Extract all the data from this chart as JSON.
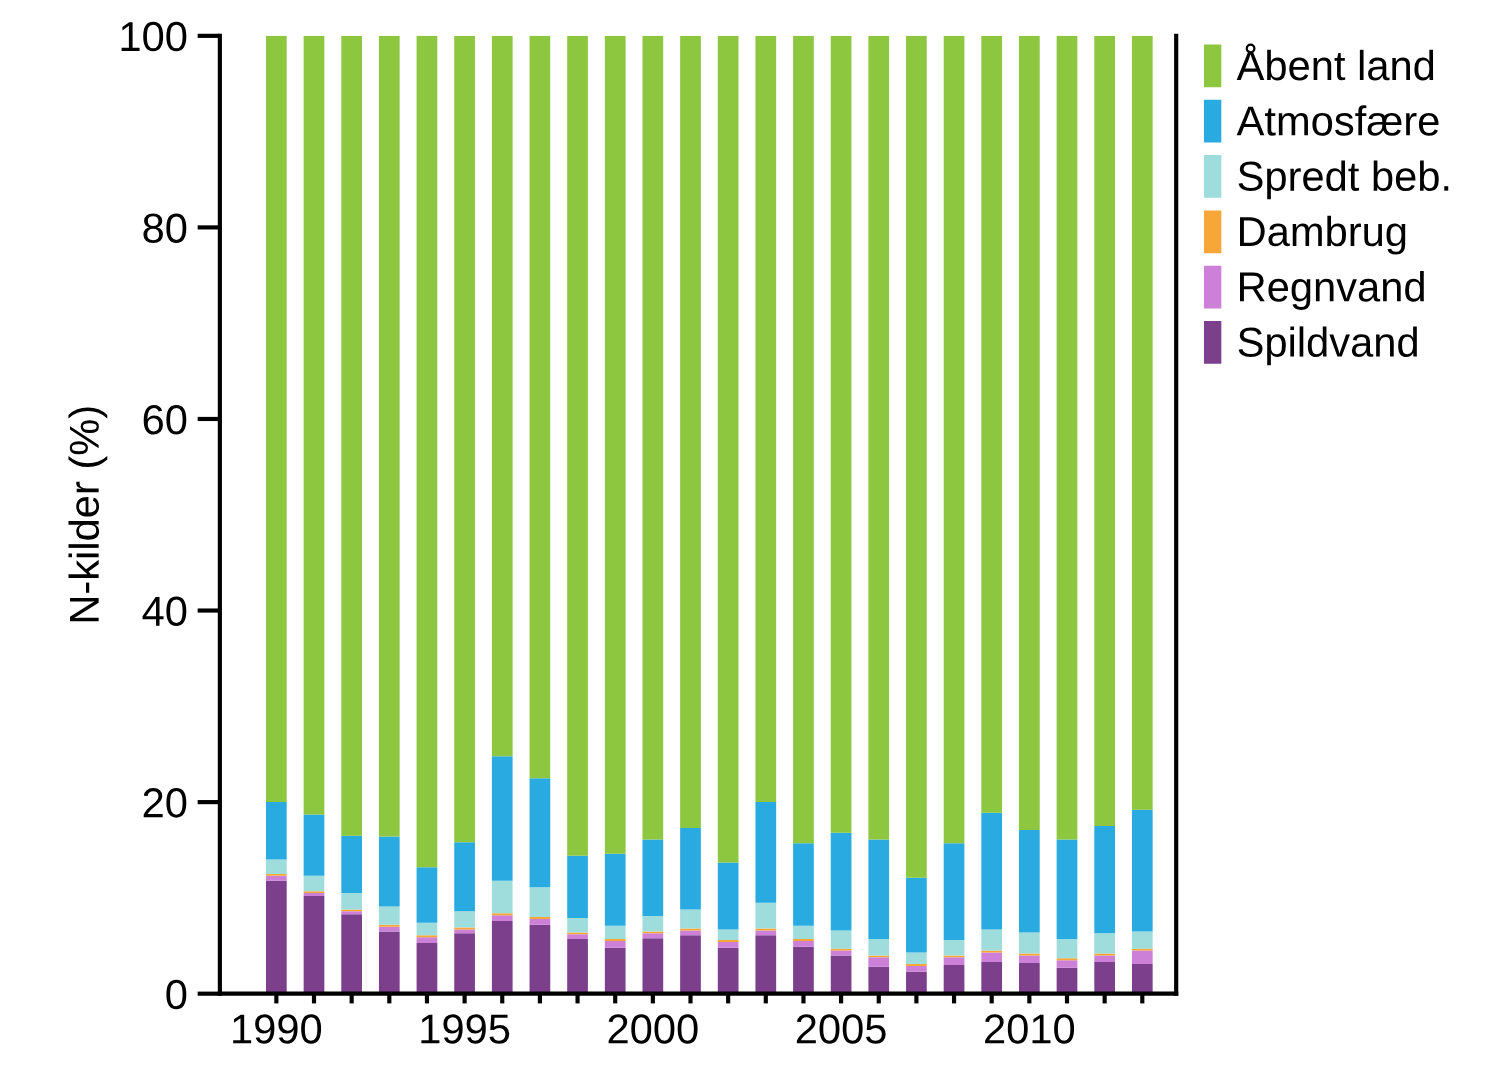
{
  "chart_data": {
    "type": "bar",
    "stacked": true,
    "ylabel": "N-kilder (%)",
    "x": [
      1990,
      1991,
      1992,
      1993,
      1994,
      1995,
      1996,
      1997,
      1998,
      1999,
      2000,
      2001,
      2002,
      2003,
      2004,
      2005,
      2006,
      2007,
      2008,
      2009,
      2010,
      2011,
      2012,
      2013
    ],
    "xlim": [
      1988.5,
      2013.9
    ],
    "xticks": [
      1990,
      {
        "value": 1991,
        "label": null
      },
      {
        "value": 1992,
        "label": null
      },
      {
        "value": 1993,
        "label": null
      },
      {
        "value": 1994,
        "label": null
      },
      1995,
      {
        "value": 1996,
        "label": null
      },
      {
        "value": 1997,
        "label": null
      },
      {
        "value": 1998,
        "label": null
      },
      {
        "value": 1999,
        "label": null
      },
      2000,
      {
        "value": 2001,
        "label": null
      },
      {
        "value": 2002,
        "label": null
      },
      {
        "value": 2003,
        "label": null
      },
      {
        "value": 2004,
        "label": null
      },
      2005,
      {
        "value": 2006,
        "label": null
      },
      {
        "value": 2007,
        "label": null
      },
      {
        "value": 2008,
        "label": null
      },
      {
        "value": 2009,
        "label": null
      },
      2010,
      {
        "value": 2011,
        "label": null
      },
      {
        "value": 2012,
        "label": null
      },
      {
        "value": 2013,
        "label": null
      }
    ],
    "ylim": [
      0,
      100
    ],
    "yticks": [
      0,
      20,
      40,
      60,
      80,
      100
    ],
    "grid": false,
    "legend": "right",
    "series": [
      {
        "name": "Spildvand",
        "color": "#7b3f8c",
        "values": [
          11.8,
          10.2,
          8.3,
          6.5,
          5.3,
          6.3,
          7.6,
          7.2,
          5.7,
          4.8,
          5.8,
          6.1,
          4.8,
          6.1,
          4.9,
          4.0,
          2.8,
          2.3,
          3.0,
          3.3,
          3.2,
          2.7,
          3.3,
          3.1
        ]
      },
      {
        "name": "Regnvand",
        "color": "#cc80d8",
        "values": [
          0.5,
          0.3,
          0.3,
          0.5,
          0.6,
          0.4,
          0.6,
          0.6,
          0.5,
          0.7,
          0.5,
          0.5,
          0.6,
          0.5,
          0.6,
          0.5,
          1.0,
          0.6,
          0.8,
          1.0,
          0.8,
          0.8,
          0.7,
          1.4
        ]
      },
      {
        "name": "Dambrug",
        "color": "#f7a738",
        "values": [
          0.2,
          0.2,
          0.2,
          0.2,
          0.2,
          0.2,
          0.2,
          0.2,
          0.2,
          0.2,
          0.2,
          0.2,
          0.2,
          0.2,
          0.2,
          0.2,
          0.2,
          0.2,
          0.2,
          0.2,
          0.2,
          0.2,
          0.2,
          0.2
        ]
      },
      {
        "name": "Spredt beb.",
        "color": "#9fdcdc",
        "values": [
          1.5,
          1.6,
          1.7,
          1.9,
          1.3,
          1.7,
          3.4,
          3.1,
          1.5,
          1.4,
          1.6,
          2.0,
          1.1,
          2.7,
          1.4,
          1.9,
          1.7,
          1.2,
          1.6,
          2.2,
          2.2,
          2.0,
          2.1,
          1.8
        ]
      },
      {
        "name": "Atmosfære",
        "color": "#29abe2",
        "values": [
          6.0,
          6.4,
          6.0,
          7.3,
          5.8,
          7.2,
          13.0,
          11.4,
          6.5,
          7.5,
          8.0,
          8.5,
          7.0,
          10.5,
          8.6,
          10.2,
          10.4,
          7.8,
          10.1,
          12.2,
          10.7,
          10.4,
          11.2,
          12.7
        ]
      },
      {
        "name": "Åbent land",
        "color": "#8dc63f",
        "values": [
          80.0,
          81.3,
          83.5,
          83.6,
          86.8,
          84.2,
          75.2,
          77.5,
          85.6,
          85.4,
          83.9,
          82.7,
          86.3,
          80.0,
          84.3,
          83.2,
          83.9,
          87.9,
          84.3,
          81.1,
          82.9,
          83.9,
          82.5,
          80.8
        ]
      }
    ]
  }
}
